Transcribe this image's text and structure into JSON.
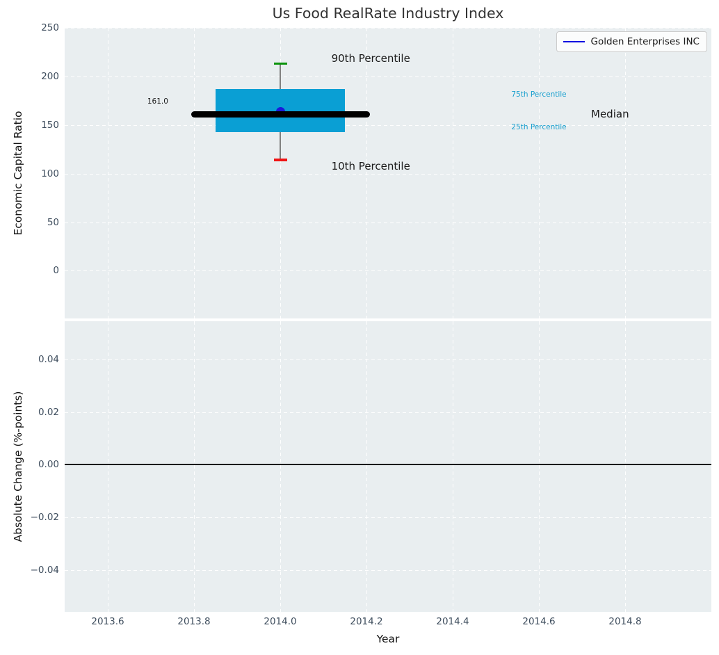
{
  "title": "Us Food RealRate Industry Index",
  "legend": {
    "label": "Golden Enterprises INC",
    "line_color": "#0000e0"
  },
  "colors": {
    "figure_background": "#ffffff",
    "plot_background": "#e9eef0",
    "box_fill": "#0a9fd4",
    "median_line": "#000000",
    "p90_cap": "#0a930a",
    "p10_cap": "#f01414",
    "whisker": "#808080",
    "company_marker": "#1b1bdb",
    "tick_label": "#3e4d5d",
    "percentile_label": "#189fce",
    "zero_line": "#000000"
  },
  "chart_data": [
    {
      "type": "box",
      "title": "Us Food RealRate Industry Index",
      "ylabel": "Economic Capital Ratio",
      "xlim": [
        2013.5,
        2015.0
      ],
      "ylim": [
        -49,
        250
      ],
      "grid": "white dashed, both axes",
      "xticks": [
        2013.6,
        2013.8,
        2014.0,
        2014.2,
        2014.4,
        2014.6,
        2014.8
      ],
      "xtick_labels": [
        "2013.6",
        "2013.8",
        "2014.0",
        "2014.2",
        "2014.4",
        "2014.6",
        "2014.8"
      ],
      "show_xtick_labels": false,
      "yticks": [
        0,
        50,
        100,
        150,
        200,
        250
      ],
      "ytick_labels": [
        "0",
        "50",
        "100",
        "150",
        "200",
        "250"
      ],
      "box": {
        "x_center": 2014.0,
        "box_x_range": [
          2013.85,
          2014.15
        ],
        "median_x_range": [
          2013.8,
          2014.2
        ],
        "p10": 114,
        "p25": 143,
        "median": 161.0,
        "p75": 187,
        "p90": 213
      },
      "company_point": {
        "name": "Golden Enterprises INC",
        "x": 2014.0,
        "y": 161.0
      },
      "median_value_label": "161.0",
      "annotations": [
        {
          "text": "90th Percentile",
          "x": 2014.21,
          "y": 218.5,
          "color": "#1a1a1a",
          "size": 15
        },
        {
          "text": "10th Percentile",
          "x": 2014.21,
          "y": 107.5,
          "color": "#1a1a1a",
          "size": 15
        },
        {
          "text": "75th Percentile",
          "x": 2014.6,
          "y": 181.5,
          "color": "#189fce",
          "size": 10.5
        },
        {
          "text": "25th Percentile",
          "x": 2014.6,
          "y": 147.5,
          "color": "#189fce",
          "size": 10.5
        },
        {
          "text": "Median",
          "x": 2014.765,
          "y": 161.0,
          "color": "#1a1a1a",
          "size": 15
        },
        {
          "text": "161.0",
          "x": 2013.716,
          "y": 174.5,
          "color": "#1a1a1a",
          "size": 10.5
        }
      ],
      "legend_position": "upper right"
    },
    {
      "type": "line",
      "ylabel": "Absolute Change (%-points)",
      "xlabel": "Year",
      "xlim": [
        2013.5,
        2015.0
      ],
      "ylim": [
        -0.056,
        0.0546
      ],
      "xticks": [
        2013.6,
        2013.8,
        2014.0,
        2014.2,
        2014.4,
        2014.6,
        2014.8
      ],
      "xtick_labels": [
        "2013.6",
        "2013.8",
        "2014.0",
        "2014.2",
        "2014.4",
        "2014.6",
        "2014.8"
      ],
      "show_xtick_labels": true,
      "yticks": [
        0.04,
        0.02,
        0.0,
        -0.02,
        -0.04
      ],
      "ytick_labels": [
        "0.04",
        "0.02",
        "0.00",
        "−0.02",
        "−0.04"
      ],
      "zero_line_y": 0.0,
      "series": []
    }
  ]
}
